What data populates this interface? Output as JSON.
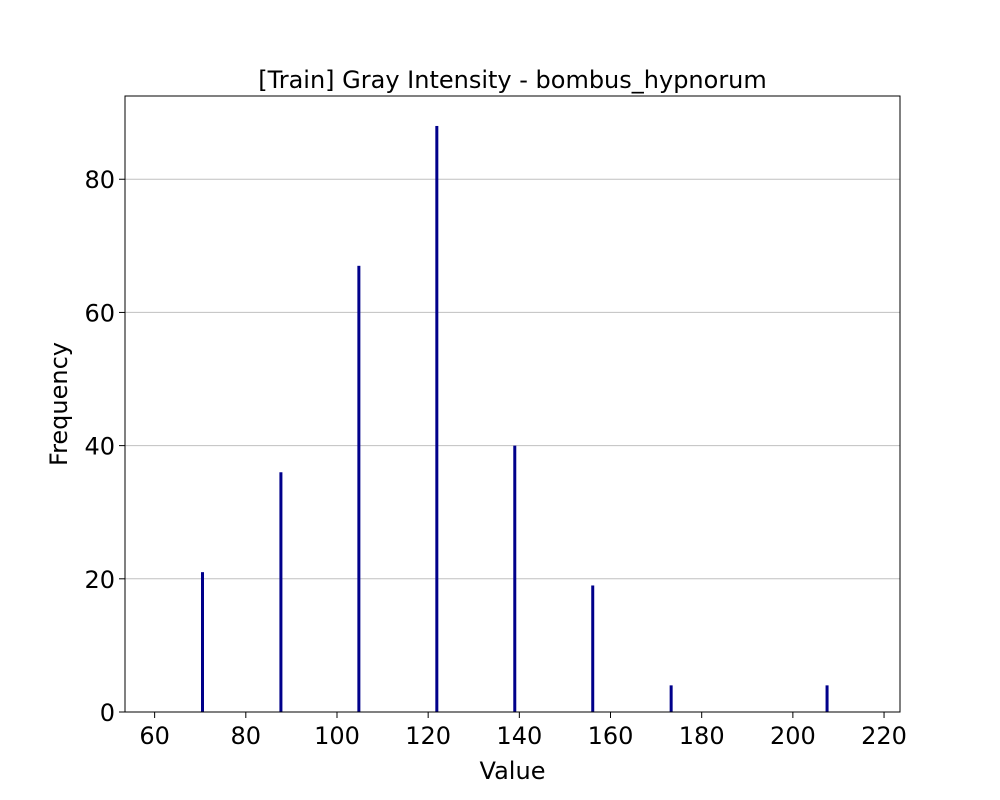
{
  "chart_data": {
    "type": "bar",
    "title": "[Train] Gray Intensity - bombus_hypnorum",
    "xlabel": "Value",
    "ylabel": "Frequency",
    "xlim": [
      53.5,
      223.5
    ],
    "ylim": [
      0,
      92.5
    ],
    "xticks": [
      60,
      80,
      100,
      120,
      140,
      160,
      180,
      200,
      220
    ],
    "yticks": [
      0,
      20,
      40,
      60,
      80
    ],
    "grid": "y",
    "bars": [
      {
        "x": 70.5,
        "value": 21
      },
      {
        "x": 87.7,
        "value": 36
      },
      {
        "x": 104.8,
        "value": 67
      },
      {
        "x": 121.9,
        "value": 88
      },
      {
        "x": 139.0,
        "value": 40
      },
      {
        "x": 156.1,
        "value": 19
      },
      {
        "x": 173.3,
        "value": 4
      },
      {
        "x": 207.5,
        "value": 4
      }
    ],
    "bar_color": "#00008b"
  }
}
